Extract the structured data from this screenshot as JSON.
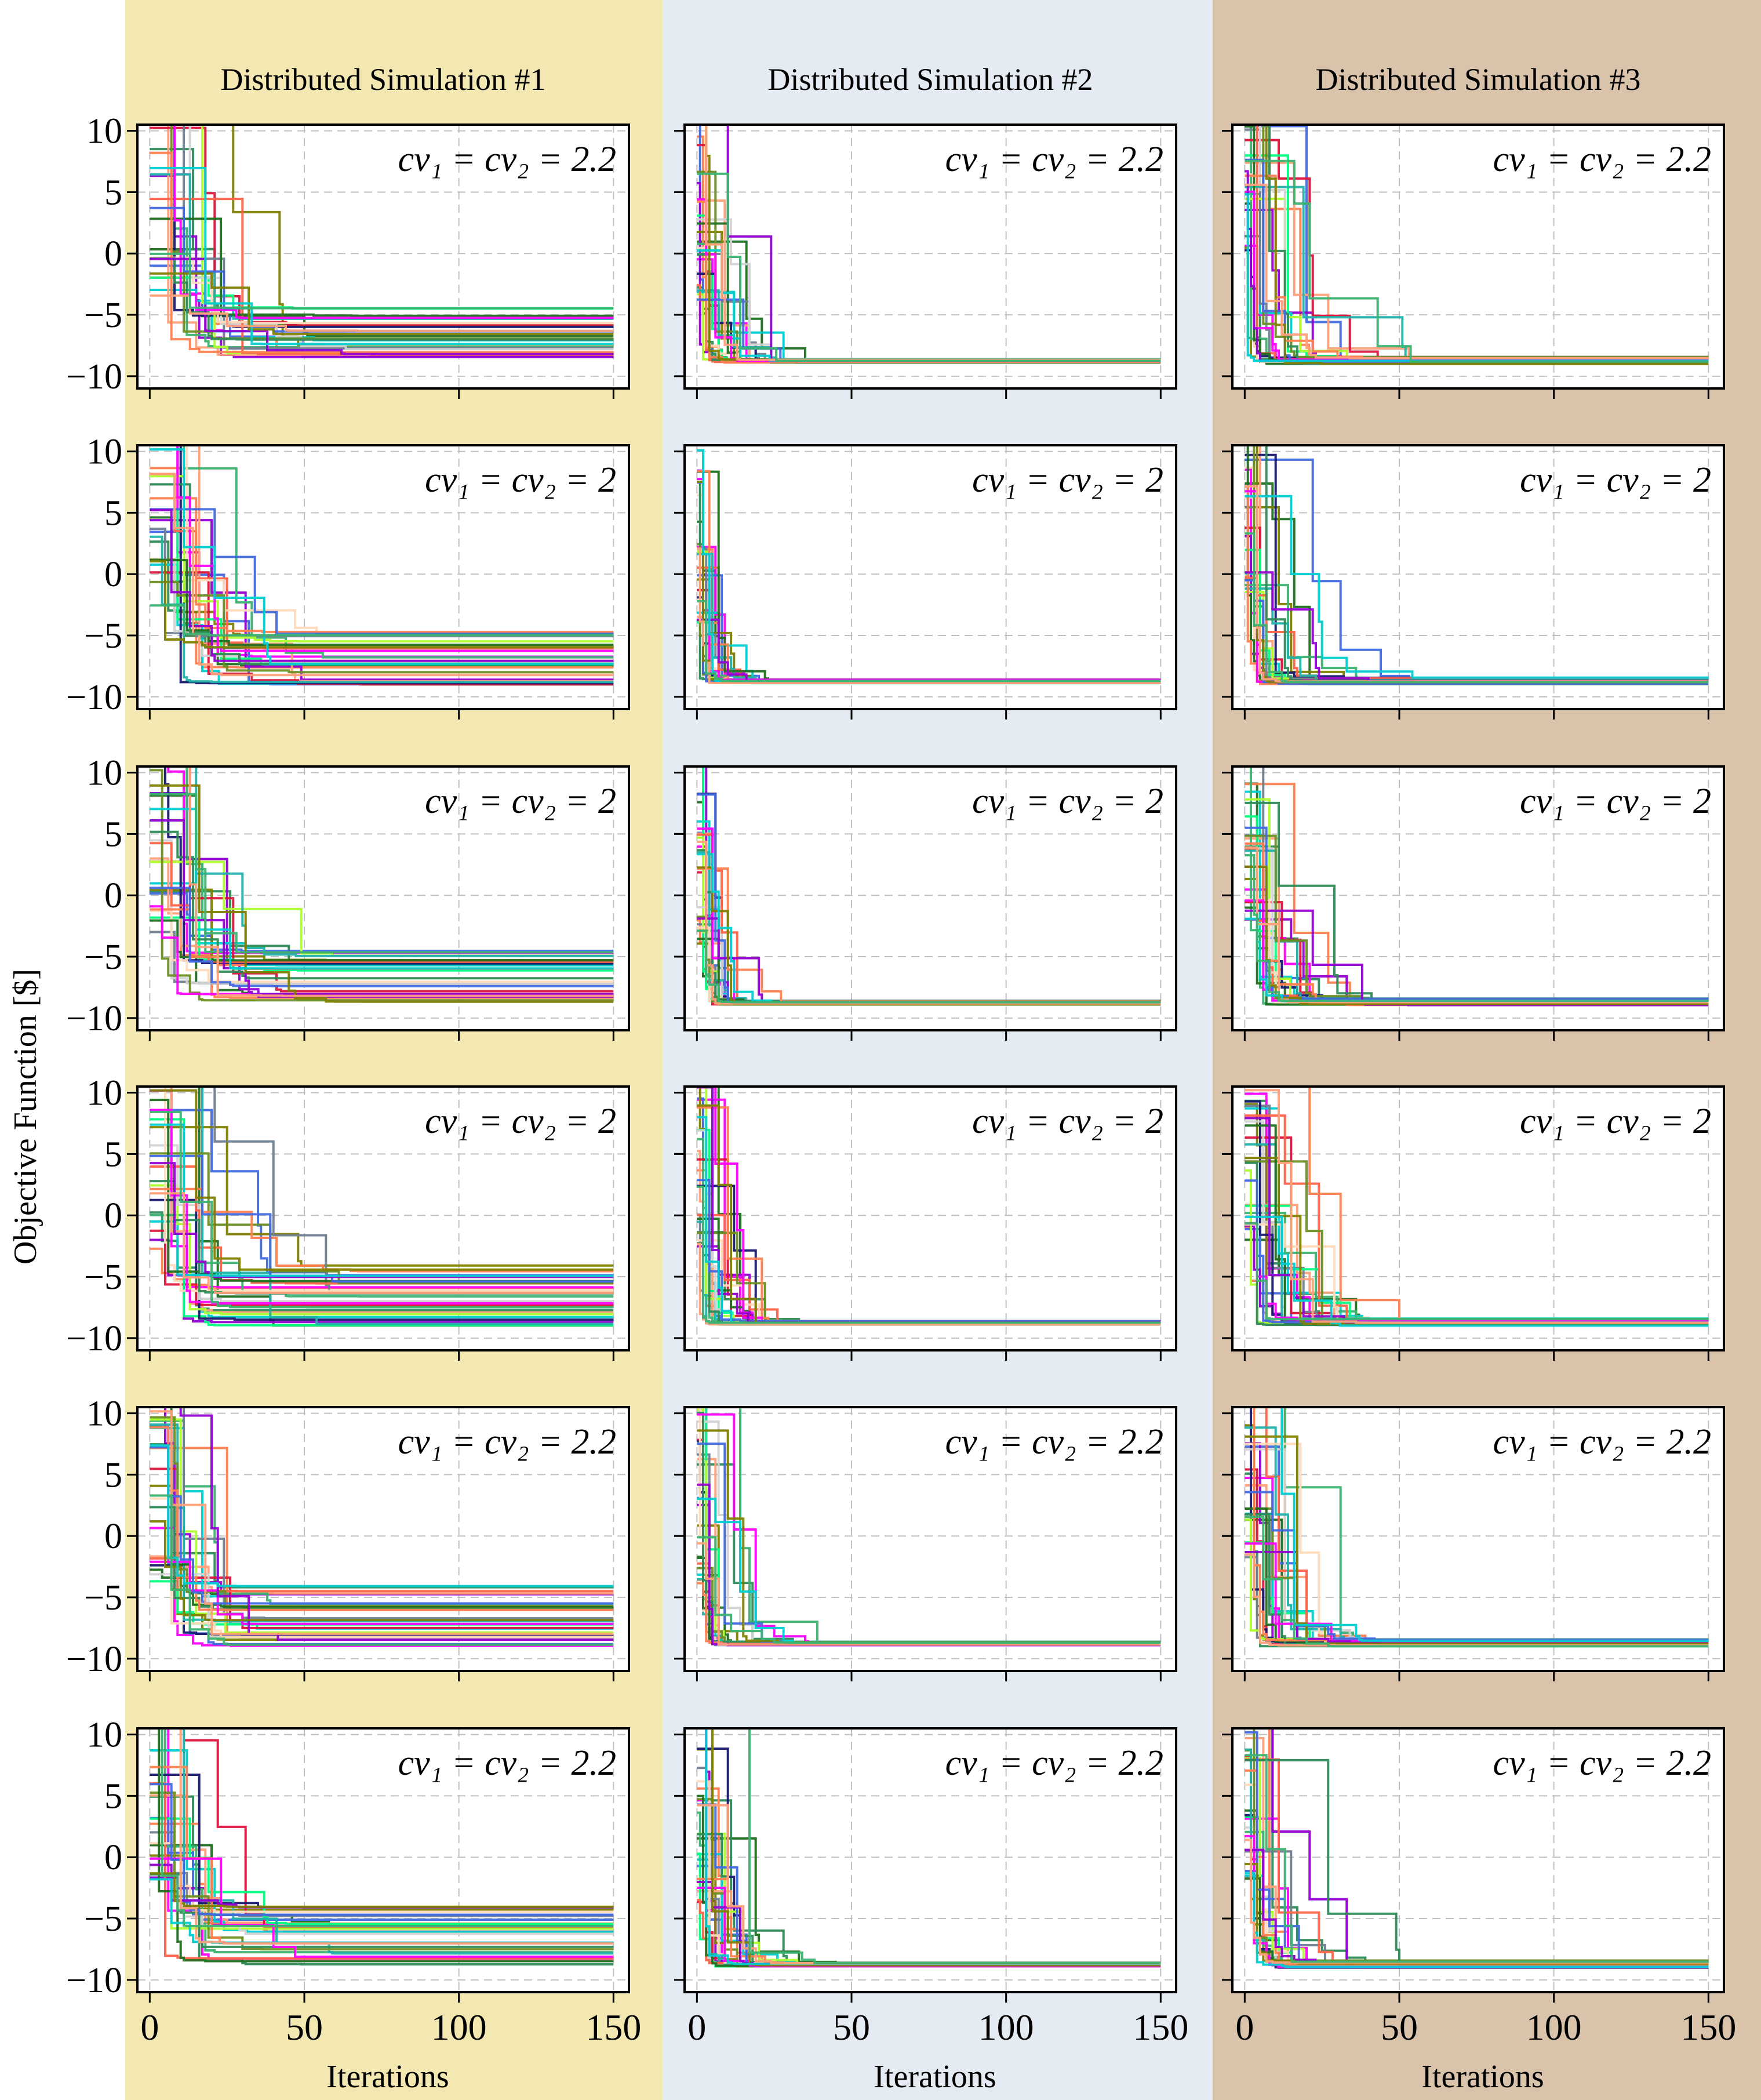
{
  "figure": {
    "ylabel": "Objective Function [$]",
    "xlabel": "Iterations",
    "colors": {
      "column_backgrounds": [
        "#f3e8b2",
        "#e5ebf2",
        "#d9c3aa"
      ],
      "grid": "#c0c0c0",
      "series_palette": [
        "#1f6f1f",
        "#2e8b57",
        "#ff7f50",
        "#ff00ff",
        "#4169e1",
        "#9400d3",
        "#808000",
        "#00ced1",
        "#ffa07a",
        "#3cb371",
        "#dc143c",
        "#708090",
        "#00ff7f",
        "#191970",
        "#adff2f",
        "#d3d3d3",
        "#ff6347",
        "#20b2aa",
        "#ffdab9",
        "#6b8e23"
      ]
    }
  },
  "chart_data": [
    {
      "type": "line",
      "column": 1,
      "row": 1,
      "title": "Distributed Simulation #1",
      "annotation_math": "cv_1 = cv_2 = 2.2",
      "annotation": "cv₁ = cv₂ = 2.2",
      "xlim": [
        -4,
        155
      ],
      "ylim": [
        -11,
        10.5
      ],
      "xticks": [
        0,
        50,
        100,
        150
      ],
      "yticks": [
        10,
        5,
        0,
        -5,
        -10
      ],
      "grid": true,
      "n_series": 30,
      "start_range": [
        -4,
        14
      ],
      "converge_iteration": [
        25,
        75
      ],
      "final_range": [
        -9,
        -4
      ]
    },
    {
      "type": "line",
      "column": 2,
      "row": 1,
      "title": "Distributed Simulation #2",
      "annotation_math": "cv_1 = cv_2 = 2.2",
      "annotation": "cv₁ = cv₂ = 2.2",
      "xlim": [
        -4,
        155
      ],
      "ylim": [
        -11,
        10.5
      ],
      "xticks": [
        0,
        50,
        100,
        150
      ],
      "yticks": [
        10,
        5,
        0,
        -5,
        -10
      ],
      "grid": true,
      "n_series": 30,
      "start_range": [
        -4,
        12
      ],
      "converge_iteration": [
        6,
        45
      ],
      "final_range": [
        -8.9,
        -8.6
      ]
    },
    {
      "type": "line",
      "column": 3,
      "row": 1,
      "title": "Distributed Simulation #3",
      "annotation_math": "cv_1 = cv_2 = 2.2",
      "annotation": "cv₁ = cv₂ = 2.2",
      "xlim": [
        -4,
        155
      ],
      "ylim": [
        -11,
        10.5
      ],
      "xticks": [
        0,
        50,
        100,
        150
      ],
      "yticks": [
        10,
        5,
        0,
        -5,
        -10
      ],
      "grid": true,
      "n_series": 30,
      "start_range": [
        -2,
        14
      ],
      "converge_iteration": [
        5,
        65
      ],
      "final_range": [
        -9,
        -8.4
      ]
    },
    {
      "type": "line",
      "column": 1,
      "row": 2,
      "annotation_math": "cv_1 = cv_2 = 2",
      "annotation": "cv₁ = cv₂ = 2",
      "xlim": [
        -4,
        155
      ],
      "ylim": [
        -11,
        10.5
      ],
      "xticks": [
        0,
        50,
        100,
        150
      ],
      "yticks": [
        10,
        5,
        0,
        -5,
        -10
      ],
      "grid": true,
      "n_series": 30,
      "start_range": [
        -3,
        14
      ],
      "converge_iteration": [
        20,
        75
      ],
      "final_range": [
        -9,
        -4
      ]
    },
    {
      "type": "line",
      "column": 2,
      "row": 2,
      "annotation_math": "cv_1 = cv_2 = 2",
      "annotation": "cv₁ = cv₂ = 2",
      "xlim": [
        -4,
        155
      ],
      "ylim": [
        -11,
        10.5
      ],
      "xticks": [
        0,
        50,
        100,
        150
      ],
      "yticks": [
        10,
        5,
        0,
        -5,
        -10
      ],
      "grid": true,
      "n_series": 30,
      "start_range": [
        -4,
        12
      ],
      "converge_iteration": [
        5,
        30
      ],
      "final_range": [
        -8.9,
        -8.6
      ]
    },
    {
      "type": "line",
      "column": 3,
      "row": 2,
      "annotation_math": "cv_1 = cv_2 = 2",
      "annotation": "cv₁ = cv₂ = 2",
      "xlim": [
        -4,
        155
      ],
      "ylim": [
        -11,
        10.5
      ],
      "xticks": [
        0,
        50,
        100,
        150
      ],
      "yticks": [
        10,
        5,
        0,
        -5,
        -10
      ],
      "grid": true,
      "n_series": 30,
      "start_range": [
        -2,
        14
      ],
      "converge_iteration": [
        5,
        55
      ],
      "final_range": [
        -9,
        -8.4
      ]
    },
    {
      "type": "line",
      "column": 1,
      "row": 3,
      "annotation_math": "cv_1 = cv_2 = 2",
      "annotation": "cv₁ = cv₂ = 2",
      "xlim": [
        -4,
        155
      ],
      "ylim": [
        -11,
        10.5
      ],
      "xticks": [
        0,
        50,
        100,
        150
      ],
      "yticks": [
        10,
        5,
        0,
        -5,
        -10
      ],
      "grid": true,
      "n_series": 30,
      "start_range": [
        -3,
        14
      ],
      "converge_iteration": [
        20,
        75
      ],
      "final_range": [
        -9,
        -4
      ]
    },
    {
      "type": "line",
      "column": 2,
      "row": 3,
      "annotation_math": "cv_1 = cv_2 = 2",
      "annotation": "cv₁ = cv₂ = 2",
      "xlim": [
        -4,
        155
      ],
      "ylim": [
        -11,
        10.5
      ],
      "xticks": [
        0,
        50,
        100,
        150
      ],
      "yticks": [
        10,
        5,
        0,
        -5,
        -10
      ],
      "grid": true,
      "n_series": 30,
      "start_range": [
        -4,
        12
      ],
      "converge_iteration": [
        5,
        30
      ],
      "final_range": [
        -8.9,
        -8.6
      ]
    },
    {
      "type": "line",
      "column": 3,
      "row": 3,
      "annotation_math": "cv_1 = cv_2 = 2",
      "annotation": "cv₁ = cv₂ = 2",
      "xlim": [
        -4,
        155
      ],
      "ylim": [
        -11,
        10.5
      ],
      "xticks": [
        0,
        50,
        100,
        150
      ],
      "yticks": [
        10,
        5,
        0,
        -5,
        -10
      ],
      "grid": true,
      "n_series": 30,
      "start_range": [
        -2,
        12
      ],
      "converge_iteration": [
        10,
        55
      ],
      "final_range": [
        -9,
        -8.4
      ]
    },
    {
      "type": "line",
      "column": 1,
      "row": 4,
      "annotation_math": "cv_1 = cv_2 = 2",
      "annotation": "cv₁ = cv₂ = 2",
      "xlim": [
        -4,
        155
      ],
      "ylim": [
        -11,
        10.5
      ],
      "xticks": [
        0,
        50,
        100,
        150
      ],
      "yticks": [
        10,
        5,
        0,
        -5,
        -10
      ],
      "grid": true,
      "n_series": 30,
      "start_range": [
        -3,
        14
      ],
      "converge_iteration": [
        20,
        75
      ],
      "final_range": [
        -9,
        -4
      ]
    },
    {
      "type": "line",
      "column": 2,
      "row": 4,
      "annotation_math": "cv_1 = cv_2 = 2",
      "annotation": "cv₁ = cv₂ = 2",
      "xlim": [
        -4,
        155
      ],
      "ylim": [
        -11,
        10.5
      ],
      "xticks": [
        0,
        50,
        100,
        150
      ],
      "yticks": [
        10,
        5,
        0,
        -5,
        -10
      ],
      "grid": true,
      "n_series": 30,
      "start_range": [
        -4,
        12
      ],
      "converge_iteration": [
        5,
        35
      ],
      "final_range": [
        -8.9,
        -8.6
      ]
    },
    {
      "type": "line",
      "column": 3,
      "row": 4,
      "annotation_math": "cv_1 = cv_2 = 2",
      "annotation": "cv₁ = cv₂ = 2",
      "xlim": [
        -4,
        155
      ],
      "ylim": [
        -11,
        10.5
      ],
      "xticks": [
        0,
        50,
        100,
        150
      ],
      "yticks": [
        10,
        5,
        0,
        -5,
        -10
      ],
      "grid": true,
      "n_series": 30,
      "start_range": [
        -2,
        12
      ],
      "converge_iteration": [
        10,
        55
      ],
      "final_range": [
        -9,
        -8.4
      ]
    },
    {
      "type": "line",
      "column": 1,
      "row": 5,
      "annotation_math": "cv_1 = cv_2 = 2.2",
      "annotation": "cv₁ = cv₂ = 2.2",
      "xlim": [
        -4,
        155
      ],
      "ylim": [
        -11,
        10.5
      ],
      "xticks": [
        0,
        50,
        100,
        150
      ],
      "yticks": [
        10,
        5,
        0,
        -5,
        -10
      ],
      "grid": true,
      "n_series": 30,
      "start_range": [
        -4,
        14
      ],
      "converge_iteration": [
        20,
        75
      ],
      "final_range": [
        -9,
        -4
      ]
    },
    {
      "type": "line",
      "column": 2,
      "row": 5,
      "annotation_math": "cv_1 = cv_2 = 2.2",
      "annotation": "cv₁ = cv₂ = 2.2",
      "xlim": [
        -4,
        155
      ],
      "ylim": [
        -11,
        10.5
      ],
      "xticks": [
        0,
        50,
        100,
        150
      ],
      "yticks": [
        10,
        5,
        0,
        -5,
        -10
      ],
      "grid": true,
      "n_series": 30,
      "start_range": [
        -4,
        12
      ],
      "converge_iteration": [
        6,
        45
      ],
      "final_range": [
        -8.9,
        -8.6
      ]
    },
    {
      "type": "line",
      "column": 3,
      "row": 5,
      "annotation_math": "cv_1 = cv_2 = 2.2",
      "annotation": "cv₁ = cv₂ = 2.2",
      "xlim": [
        -4,
        155
      ],
      "ylim": [
        -11,
        10.5
      ],
      "xticks": [
        0,
        50,
        100,
        150
      ],
      "yticks": [
        10,
        5,
        0,
        -5,
        -10
      ],
      "grid": true,
      "n_series": 30,
      "start_range": [
        -2,
        14
      ],
      "converge_iteration": [
        10,
        55
      ],
      "final_range": [
        -9,
        -8.4
      ]
    },
    {
      "type": "line",
      "column": 1,
      "row": 6,
      "annotation_math": "cv_1 = cv_2 = 2.2",
      "annotation": "cv₁ = cv₂ = 2.2",
      "xlim": [
        -4,
        155
      ],
      "ylim": [
        -11,
        10.5
      ],
      "xticks": [
        0,
        50,
        100,
        150
      ],
      "yticks": [
        10,
        5,
        0,
        -5,
        -10
      ],
      "grid": true,
      "n_series": 30,
      "start_range": [
        -4,
        14
      ],
      "converge_iteration": [
        20,
        75
      ],
      "final_range": [
        -9,
        -4
      ]
    },
    {
      "type": "line",
      "column": 2,
      "row": 6,
      "annotation_math": "cv_1 = cv_2 = 2.2",
      "annotation": "cv₁ = cv₂ = 2.2",
      "xlim": [
        -4,
        155
      ],
      "ylim": [
        -11,
        10.5
      ],
      "xticks": [
        0,
        50,
        100,
        150
      ],
      "yticks": [
        10,
        5,
        0,
        -5,
        -10
      ],
      "grid": true,
      "n_series": 30,
      "start_range": [
        -4,
        12
      ],
      "converge_iteration": [
        6,
        45
      ],
      "final_range": [
        -8.9,
        -8.6
      ]
    },
    {
      "type": "line",
      "column": 3,
      "row": 6,
      "annotation_math": "cv_1 = cv_2 = 2.2",
      "annotation": "cv₁ = cv₂ = 2.2",
      "xlim": [
        -4,
        155
      ],
      "ylim": [
        -11,
        10.5
      ],
      "xticks": [
        0,
        50,
        100,
        150
      ],
      "yticks": [
        10,
        5,
        0,
        -5,
        -10
      ],
      "grid": true,
      "n_series": 30,
      "start_range": [
        -2,
        12
      ],
      "converge_iteration": [
        10,
        55
      ],
      "final_range": [
        -9,
        -8.4
      ]
    }
  ]
}
